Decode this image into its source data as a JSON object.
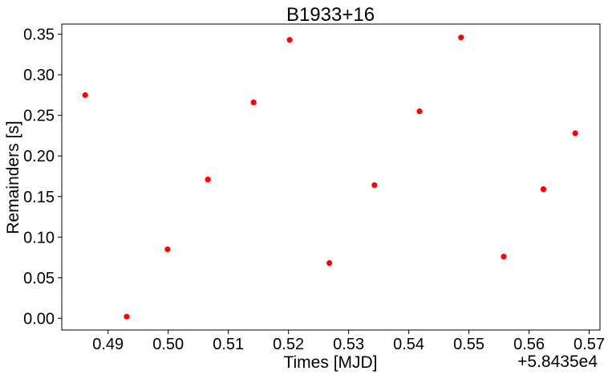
{
  "chart_data": {
    "type": "scatter",
    "title": "B1933+16",
    "xlabel": "Times [MJD]",
    "ylabel": "Remainders [s]",
    "x_offset_label": "+5.8435e4",
    "xlim": [
      0.4823,
      0.5718
    ],
    "ylim": [
      -0.0145,
      0.3625
    ],
    "xticks": [
      "0.49",
      "0.50",
      "0.51",
      "0.52",
      "0.53",
      "0.54",
      "0.55",
      "0.56",
      "0.57"
    ],
    "yticks": [
      "0.00",
      "0.05",
      "0.10",
      "0.15",
      "0.20",
      "0.25",
      "0.30",
      "0.35"
    ],
    "grid": false,
    "point_color": "#ff0000",
    "series": [
      {
        "x": [
          0.4862,
          0.4931,
          0.4999,
          0.5066,
          0.5142,
          0.5202,
          0.5268,
          0.5343,
          0.5418,
          0.5487,
          0.5558,
          0.5624,
          0.5677
        ],
        "y": [
          0.275,
          0.002,
          0.085,
          0.171,
          0.266,
          0.343,
          0.068,
          0.164,
          0.255,
          0.346,
          0.076,
          0.159,
          0.228
        ]
      }
    ]
  }
}
